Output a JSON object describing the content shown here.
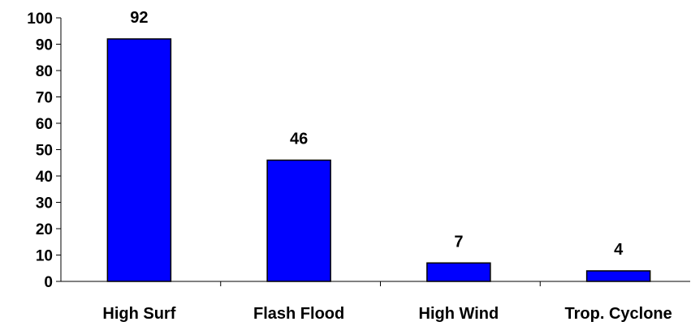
{
  "chart_data": {
    "type": "bar",
    "categories": [
      "High Surf",
      "Flash Flood",
      "High Wind",
      "Trop. Cyclone"
    ],
    "values": [
      92,
      46,
      7,
      4
    ],
    "data_labels": [
      "92",
      "46",
      "7",
      "4"
    ],
    "title": "",
    "xlabel": "",
    "ylabel": "",
    "ylim": [
      0,
      100
    ],
    "yticks": [
      0,
      10,
      20,
      30,
      40,
      50,
      60,
      70,
      80,
      90,
      100
    ],
    "ytick_labels": [
      "0",
      "10",
      "20",
      "30",
      "40",
      "50",
      "60",
      "70",
      "80",
      "90",
      "100"
    ],
    "grid": false,
    "legend": false,
    "colors": {
      "bar_fill": "#0000FF",
      "bar_stroke": "#000000",
      "axis": "#000000",
      "background": "#FFFFFF"
    }
  }
}
